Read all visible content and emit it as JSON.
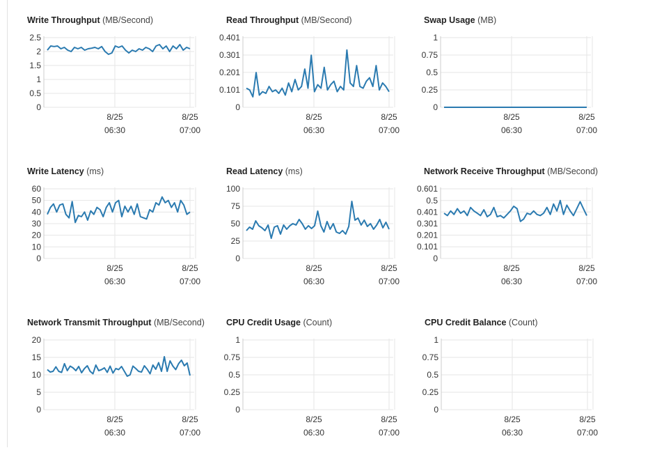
{
  "x_ticks": [
    {
      "date": "8/25",
      "time": "06:30"
    },
    {
      "date": "8/25",
      "time": "07:00"
    }
  ],
  "colors": {
    "line": "#2a7ab0",
    "grid": "#e6e6e6",
    "axis": "#cccccc",
    "text": "#333333"
  },
  "panels": [
    {
      "id": "write-throughput",
      "title": "Write Throughput",
      "unit": "(MB/Second)",
      "y_ticks": [
        "0",
        "0.5",
        "1",
        "1.5",
        "2",
        "2.5"
      ],
      "ylim": [
        0,
        2.5
      ],
      "values": [
        2.05,
        2.2,
        2.18,
        2.2,
        2.1,
        2.15,
        2.05,
        2.0,
        2.15,
        2.1,
        2.15,
        2.05,
        2.1,
        2.12,
        2.15,
        2.1,
        2.18,
        2.0,
        1.9,
        1.95,
        2.2,
        2.15,
        2.2,
        2.05,
        1.95,
        2.05,
        2.0,
        2.1,
        2.05,
        2.15,
        2.1,
        2.0,
        2.2,
        2.25,
        2.1,
        2.2,
        2.0,
        2.2,
        2.1,
        2.25,
        2.05,
        2.15,
        2.1
      ]
    },
    {
      "id": "read-throughput",
      "title": "Read Throughput",
      "unit": "(MB/Second)",
      "y_ticks": [
        "0",
        "0.101",
        "0.201",
        "0.301",
        "0.401"
      ],
      "ylim": [
        0,
        0.401
      ],
      "values": [
        0.11,
        0.1,
        0.06,
        0.2,
        0.07,
        0.09,
        0.08,
        0.12,
        0.09,
        0.1,
        0.08,
        0.11,
        0.07,
        0.14,
        0.09,
        0.16,
        0.1,
        0.12,
        0.22,
        0.11,
        0.3,
        0.09,
        0.13,
        0.11,
        0.23,
        0.1,
        0.13,
        0.15,
        0.09,
        0.12,
        0.1,
        0.33,
        0.14,
        0.12,
        0.24,
        0.12,
        0.11,
        0.15,
        0.17,
        0.12,
        0.24,
        0.1,
        0.14,
        0.12,
        0.09
      ]
    },
    {
      "id": "swap-usage",
      "title": "Swap Usage",
      "unit": "(MB)",
      "y_ticks": [
        "0",
        "0.25",
        "0.5",
        "0.75",
        "1"
      ],
      "ylim": [
        0,
        1
      ],
      "values": [
        0,
        0
      ]
    },
    {
      "id": "write-latency",
      "title": "Write Latency",
      "unit": "(ms)",
      "y_ticks": [
        "0",
        "10",
        "20",
        "30",
        "40",
        "50",
        "60"
      ],
      "ylim": [
        0,
        60
      ],
      "values": [
        38,
        44,
        47,
        40,
        46,
        47,
        38,
        35,
        49,
        31,
        37,
        36,
        40,
        33,
        41,
        38,
        44,
        42,
        36,
        44,
        48,
        40,
        48,
        50,
        36,
        45,
        40,
        45,
        38,
        47,
        36,
        35,
        34,
        42,
        40,
        48,
        46,
        53,
        48,
        50,
        44,
        48,
        40,
        50,
        46,
        38,
        40
      ]
    },
    {
      "id": "read-latency",
      "title": "Read Latency",
      "unit": "(ms)",
      "y_ticks": [
        "0",
        "25",
        "50",
        "75",
        "100"
      ],
      "ylim": [
        0,
        100
      ],
      "values": [
        40,
        45,
        42,
        54,
        47,
        44,
        40,
        48,
        29,
        45,
        47,
        35,
        48,
        42,
        47,
        50,
        48,
        56,
        50,
        42,
        47,
        43,
        47,
        68,
        47,
        38,
        53,
        42,
        50,
        38,
        36,
        40,
        35,
        46,
        82,
        55,
        58,
        48,
        55,
        46,
        50,
        42,
        48,
        56,
        44,
        52,
        42
      ]
    },
    {
      "id": "network-receive-throughput",
      "title": "Network Receive Throughput",
      "unit": "(MB/Second)",
      "y_ticks": [
        "0",
        "0.101",
        "0.201",
        "0.301",
        "0.401",
        "0.5",
        "0.601"
      ],
      "ylim": [
        0,
        0.601
      ],
      "values": [
        0.39,
        0.37,
        0.41,
        0.38,
        0.43,
        0.39,
        0.41,
        0.37,
        0.44,
        0.41,
        0.39,
        0.37,
        0.42,
        0.36,
        0.38,
        0.44,
        0.36,
        0.37,
        0.35,
        0.38,
        0.41,
        0.45,
        0.43,
        0.32,
        0.34,
        0.39,
        0.38,
        0.41,
        0.38,
        0.37,
        0.39,
        0.44,
        0.38,
        0.47,
        0.41,
        0.5,
        0.38,
        0.46,
        0.41,
        0.37,
        0.43,
        0.49,
        0.43,
        0.37
      ]
    },
    {
      "id": "network-transmit-throughput",
      "title": "Network Transmit Throughput",
      "unit": "(MB/Second)",
      "y_ticks": [
        "0",
        "5",
        "10",
        "15",
        "20"
      ],
      "ylim": [
        0,
        20
      ],
      "values": [
        11.5,
        10.8,
        11.0,
        12.3,
        11.0,
        10.7,
        13.2,
        11.2,
        12.5,
        12.0,
        11.2,
        12.4,
        10.6,
        11.8,
        12.6,
        11.0,
        10.3,
        12.8,
        11.2,
        11.5,
        12.0,
        10.7,
        12.5,
        10.5,
        11.8,
        11.5,
        12.4,
        11.0,
        9.6,
        10.0,
        12.5,
        11.8,
        11.0,
        10.8,
        12.6,
        11.6,
        10.3,
        12.8,
        11.6,
        13.5,
        11.0,
        15.2,
        11.0,
        14.0,
        12.5,
        11.5,
        13.2,
        14.2,
        12.6,
        13.4,
        9.8
      ]
    },
    {
      "id": "cpu-credit-usage",
      "title": "CPU Credit Usage",
      "unit": "(Count)",
      "y_ticks": [
        "0",
        "0.25",
        "0.5",
        "0.75",
        "1"
      ],
      "ylim": [
        0,
        1
      ],
      "values": []
    },
    {
      "id": "cpu-credit-balance",
      "title": "CPU Credit Balance",
      "unit": "(Count)",
      "y_ticks": [
        "0",
        "0.25",
        "0.5",
        "0.75",
        "1"
      ],
      "ylim": [
        0,
        1
      ],
      "values": []
    }
  ],
  "chart_data": [
    {
      "type": "line",
      "title": "Write Throughput (MB/Second)",
      "x": [
        "8/25 06:30",
        "8/25 07:00"
      ],
      "ylim": [
        0,
        2.5
      ]
    },
    {
      "type": "line",
      "title": "Read Throughput (MB/Second)",
      "x": [
        "8/25 06:30",
        "8/25 07:00"
      ],
      "ylim": [
        0,
        0.401
      ]
    },
    {
      "type": "line",
      "title": "Swap Usage (MB)",
      "x": [
        "8/25 06:30",
        "8/25 07:00"
      ],
      "ylim": [
        0,
        1
      ]
    },
    {
      "type": "line",
      "title": "Write Latency (ms)",
      "x": [
        "8/25 06:30",
        "8/25 07:00"
      ],
      "ylim": [
        0,
        60
      ]
    },
    {
      "type": "line",
      "title": "Read Latency (ms)",
      "x": [
        "8/25 06:30",
        "8/25 07:00"
      ],
      "ylim": [
        0,
        100
      ]
    },
    {
      "type": "line",
      "title": "Network Receive Throughput (MB/Second)",
      "x": [
        "8/25 06:30",
        "8/25 07:00"
      ],
      "ylim": [
        0,
        0.601
      ]
    },
    {
      "type": "line",
      "title": "Network Transmit Throughput (MB/Second)",
      "x": [
        "8/25 06:30",
        "8/25 07:00"
      ],
      "ylim": [
        0,
        20
      ]
    },
    {
      "type": "line",
      "title": "CPU Credit Usage (Count)",
      "x": [
        "8/25 06:30",
        "8/25 07:00"
      ],
      "ylim": [
        0,
        1
      ]
    },
    {
      "type": "line",
      "title": "CPU Credit Balance (Count)",
      "x": [
        "8/25 06:30",
        "8/25 07:00"
      ],
      "ylim": [
        0,
        1
      ]
    }
  ]
}
